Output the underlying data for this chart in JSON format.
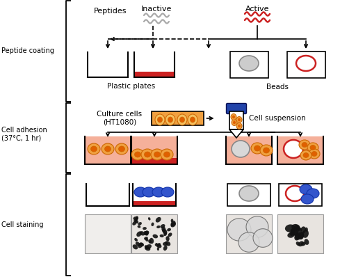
{
  "label_peptide_coating": "Peptide coating",
  "label_cell_adhesion": "Cell adhesion\n(37°C, 1 hr)",
  "label_cell_staining": "Cell staining",
  "label_inactive": "Inactive",
  "label_active": "Active",
  "label_peptides": "Peptides",
  "label_plastic_plates": "Plastic plates",
  "label_beads": "Beads",
  "label_culture_cells": "Culture cells\n(HT1080)",
  "label_cell_suspension": "Cell suspension",
  "color_red": "#cc2222",
  "color_gray_peptide": "#aaaaaa",
  "color_cell_outer": "#f0a040",
  "color_cell_inner": "#e06000",
  "color_cell_border": "#cc6600",
  "color_well_bg": "#f5b09a",
  "color_blue": "#3355cc",
  "color_bead_gray": "#cccccc",
  "color_tube_cap": "#2244aa",
  "color_flask_bg": "#f0a040"
}
